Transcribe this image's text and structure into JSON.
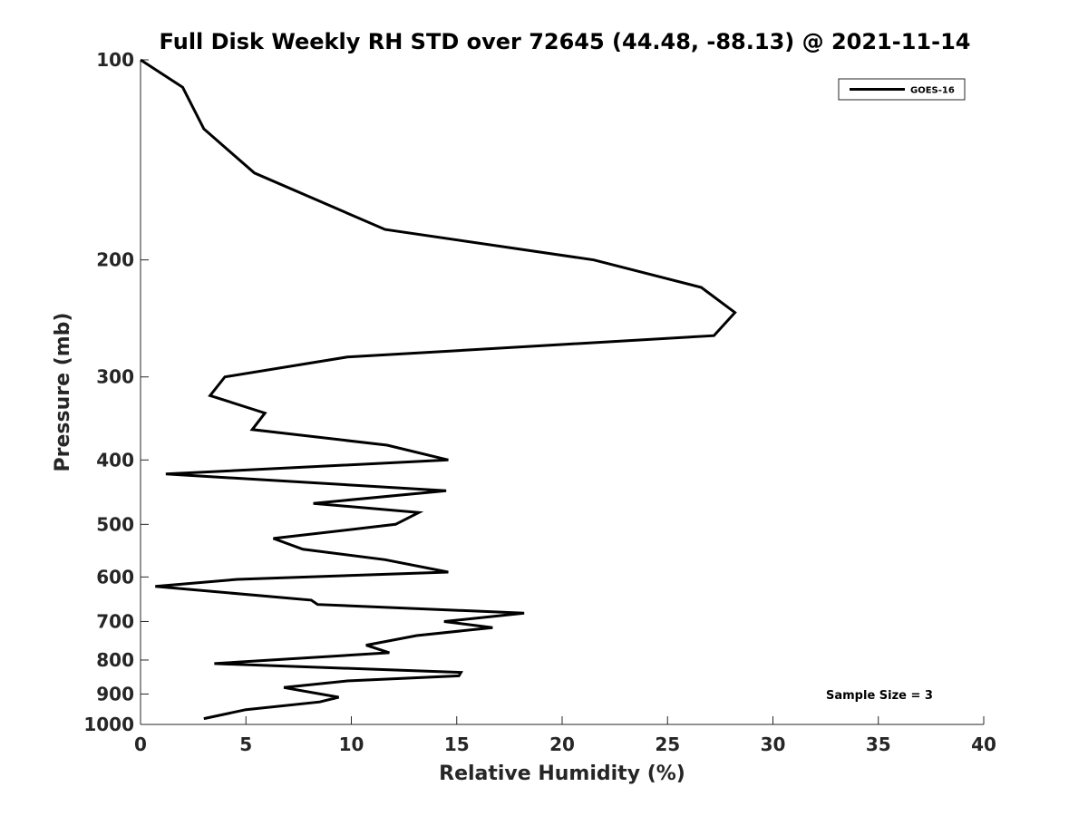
{
  "chart_data": {
    "type": "line",
    "title": "Full Disk Weekly RH STD over 72645 (44.48, -88.13) @ 2021-11-14",
    "xlabel": "Relative Humidity (%)",
    "ylabel": "Pressure (mb)",
    "xlim": [
      0,
      40
    ],
    "ylim": [
      100,
      1000
    ],
    "yscale": "log",
    "y_reversed": true,
    "xticks": [
      0,
      5,
      10,
      15,
      20,
      25,
      30,
      35,
      40
    ],
    "yticks": [
      100,
      200,
      300,
      400,
      500,
      600,
      700,
      800,
      900,
      1000
    ],
    "grid": false,
    "legend": {
      "position": "top-right",
      "entries": [
        "GOES-16"
      ]
    },
    "annotation": "Sample Size = 3",
    "series": [
      {
        "name": "GOES-16",
        "color": "#000000",
        "x": [
          0.0,
          2.0,
          3.0,
          5.4,
          11.6,
          21.5,
          26.6,
          28.2,
          27.2,
          9.8,
          4.0,
          3.3,
          5.9,
          5.3,
          11.7,
          14.6,
          1.2,
          14.5,
          8.2,
          13.2,
          12.1,
          6.3,
          7.7,
          11.6,
          14.6,
          4.6,
          0.7,
          8.1,
          8.4,
          18.2,
          14.4,
          16.7,
          13.1,
          10.7,
          11.8,
          3.5,
          15.2,
          15.1,
          9.8,
          6.8,
          9.4,
          8.5,
          5.0,
          3.0
        ],
        "y": [
          100,
          110,
          127,
          148,
          180,
          200,
          220,
          240,
          260,
          280,
          300,
          320,
          340,
          360,
          380,
          400,
          420,
          445,
          465,
          480,
          500,
          525,
          545,
          565,
          590,
          605,
          620,
          650,
          660,
          680,
          700,
          715,
          735,
          760,
          780,
          810,
          835,
          845,
          860,
          880,
          910,
          925,
          950,
          980
        ]
      }
    ]
  }
}
